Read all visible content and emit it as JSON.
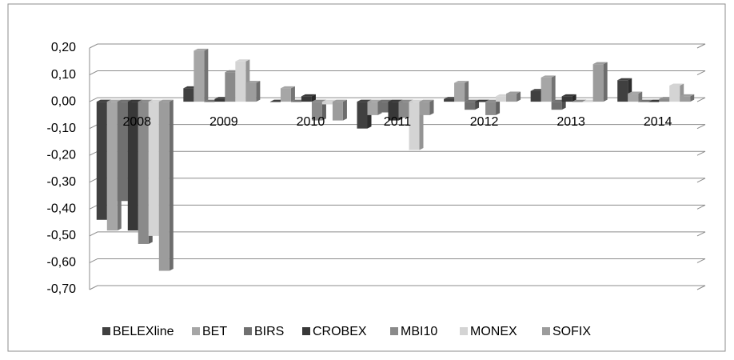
{
  "chart_data": {
    "type": "bar3d",
    "categories": [
      "2008",
      "2009",
      "2010",
      "2011",
      "2012",
      "2013",
      "2014"
    ],
    "series": [
      {
        "name": "BELEXline",
        "color": "#404040",
        "values": [
          -0.44,
          0.05,
          0.0,
          -0.1,
          0.01,
          0.04,
          0.08
        ]
      },
      {
        "name": "BET",
        "color": "#a6a6a6",
        "values": [
          -0.48,
          0.19,
          0.05,
          -0.05,
          0.07,
          0.09,
          0.03
        ]
      },
      {
        "name": "BIRS",
        "color": "#707070",
        "values": [
          -0.37,
          0.0,
          0.0,
          -0.04,
          -0.03,
          -0.03,
          0.0
        ]
      },
      {
        "name": "CROBEX",
        "color": "#383838",
        "values": [
          -0.48,
          0.01,
          0.02,
          -0.07,
          0.0,
          0.02,
          0.0
        ]
      },
      {
        "name": "MBI10",
        "color": "#8a8a8a",
        "values": [
          -0.53,
          0.11,
          -0.07,
          -0.06,
          -0.05,
          0.0,
          0.01
        ]
      },
      {
        "name": "MONEX",
        "color": "#d4d4d4",
        "values": [
          -0.5,
          0.15,
          -0.01,
          -0.18,
          0.02,
          0.0,
          0.06
        ]
      },
      {
        "name": "SOFIX",
        "color": "#9c9c9c",
        "values": [
          -0.63,
          0.07,
          -0.07,
          -0.05,
          0.03,
          0.14,
          0.02
        ]
      }
    ],
    "ylim": [
      -0.7,
      0.2
    ],
    "yticks": [
      {
        "value": -0.7,
        "label": "-0,70"
      },
      {
        "value": -0.6,
        "label": "-0,60"
      },
      {
        "value": -0.5,
        "label": "-0,50"
      },
      {
        "value": -0.4,
        "label": "-0,40"
      },
      {
        "value": -0.3,
        "label": "-0,30"
      },
      {
        "value": -0.2,
        "label": "-0,20"
      },
      {
        "value": -0.1,
        "label": "-0,10"
      },
      {
        "value": 0.0,
        "label": "0,00"
      },
      {
        "value": 0.1,
        "label": "0,10"
      },
      {
        "value": 0.2,
        "label": "0,20"
      }
    ],
    "grid": true,
    "legend": "bottom"
  }
}
